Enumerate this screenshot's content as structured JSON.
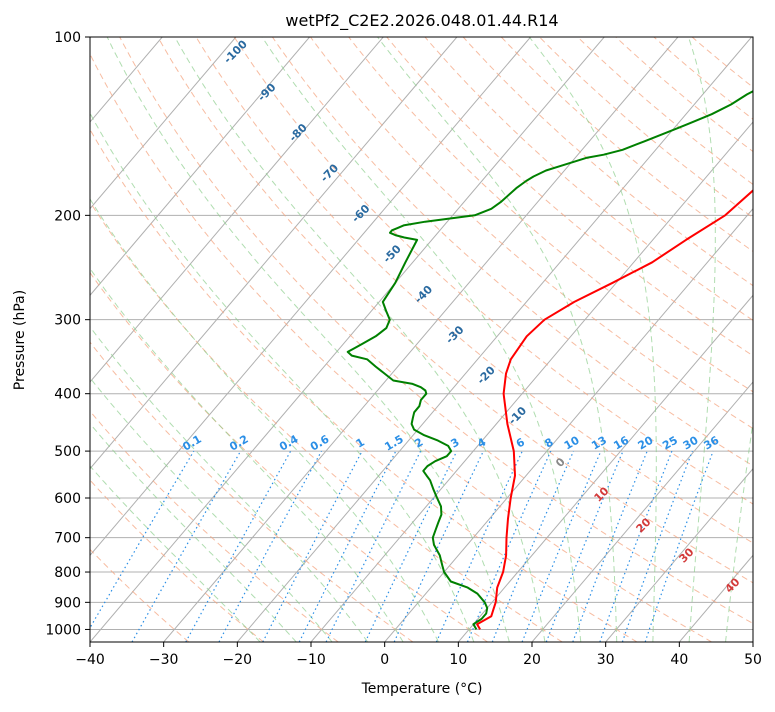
{
  "chart_data": {
    "type": "line",
    "title": "wetPf2_C2E2.2026.048.01.44.R14",
    "xlabel": "Temperature (°C)",
    "ylabel": "Pressure (hPa)",
    "xlim": [
      -40,
      50
    ],
    "ylim": [
      1050,
      100
    ],
    "y_scale": "log",
    "grid": true,
    "x_ticks": [
      -40,
      -30,
      -20,
      -10,
      0,
      10,
      20,
      30,
      40,
      50
    ],
    "y_ticks": [
      100,
      200,
      300,
      400,
      500,
      600,
      700,
      800,
      900,
      1000
    ],
    "dry_adiabat_labels": [
      "-100",
      "-90",
      "-80",
      "-70",
      "-60",
      "-50",
      "-40",
      "-30",
      "-20",
      "-10"
    ],
    "mixing_ratio_labels": [
      "0.1",
      "0.2",
      "0.4",
      "0.6",
      "1",
      "1.5",
      "2",
      "3",
      "4",
      "6",
      "8",
      "10",
      "13",
      "16",
      "20",
      "25",
      "30",
      "36"
    ],
    "moist_adiabat_labels": [
      "0",
      "10",
      "20",
      "30",
      "40"
    ],
    "colors": {
      "temperature": "#ff0000",
      "dewpoint": "#008000",
      "isotherm": "#b0b0b0",
      "dry_adiabat": "#f4a582",
      "moist_adiabat": "#8fcf8f",
      "mixing_ratio": "#2b8fe6"
    },
    "series": [
      {
        "key": "temperature",
        "pressure": [
          1000,
          980,
          950,
          925,
          900,
          850,
          800,
          750,
          700,
          650,
          600,
          550,
          500,
          450,
          400,
          370,
          350,
          320,
          300,
          280,
          260,
          240,
          220,
          200,
          180,
          160,
          140,
          130,
          120,
          110,
          100
        ],
        "values": [
          11.5,
          10.5,
          11.5,
          11.0,
          10.5,
          9.0,
          8.0,
          6.5,
          4.5,
          2.5,
          0.5,
          -1.5,
          -4.5,
          -8.5,
          -12.5,
          -14.5,
          -15.5,
          -16.0,
          -15.5,
          -13.5,
          -10.5,
          -7.5,
          -5.5,
          -3.0,
          -2.0,
          -1.0,
          0.0,
          0.0,
          1.0,
          3.0,
          6.0
        ]
      },
      {
        "key": "dewpoint",
        "pressure": [
          1000,
          980,
          960,
          940,
          920,
          900,
          870,
          850,
          830,
          800,
          780,
          750,
          720,
          700,
          680,
          660,
          640,
          620,
          600,
          580,
          560,
          550,
          540,
          530,
          520,
          510,
          500,
          490,
          480,
          470,
          460,
          450,
          440,
          430,
          420,
          410,
          400,
          395,
          390,
          385,
          380,
          360,
          350,
          345,
          340,
          335,
          330,
          320,
          310,
          300,
          290,
          280,
          260,
          240,
          220,
          218,
          216,
          214,
          212,
          210,
          208,
          205,
          200,
          195,
          190,
          180,
          175,
          172,
          168,
          165,
          160,
          158,
          155,
          150,
          145,
          140,
          135,
          130,
          125,
          120,
          115,
          110,
          105,
          100
        ],
        "values": [
          11.0,
          10.0,
          10.5,
          10.5,
          10.0,
          9.0,
          7.0,
          5.0,
          2.0,
          0.0,
          -1.0,
          -2.5,
          -4.5,
          -5.5,
          -6.0,
          -6.5,
          -7.0,
          -8.0,
          -9.5,
          -11.0,
          -12.5,
          -13.5,
          -14.5,
          -14.5,
          -14.0,
          -13.0,
          -13.0,
          -14.0,
          -16.0,
          -18.5,
          -20.5,
          -21.5,
          -22.0,
          -22.5,
          -22.5,
          -23.0,
          -23.0,
          -23.5,
          -24.5,
          -26.0,
          -29.0,
          -33.0,
          -35.0,
          -37.5,
          -38.5,
          -38.0,
          -37.5,
          -36.5,
          -36.0,
          -36.5,
          -38.0,
          -39.5,
          -40.0,
          -41.0,
          -42.0,
          -44.0,
          -45.5,
          -46.5,
          -46.5,
          -46.0,
          -45.5,
          -43.0,
          -37.0,
          -35.5,
          -35.0,
          -34.5,
          -34.0,
          -33.5,
          -32.5,
          -31.0,
          -28.5,
          -26.5,
          -24.5,
          -22.5,
          -20.5,
          -18.5,
          -16.5,
          -15.0,
          -14.0,
          -12.5,
          -11.0,
          -8.5,
          -5.0,
          0.0
        ]
      }
    ]
  }
}
